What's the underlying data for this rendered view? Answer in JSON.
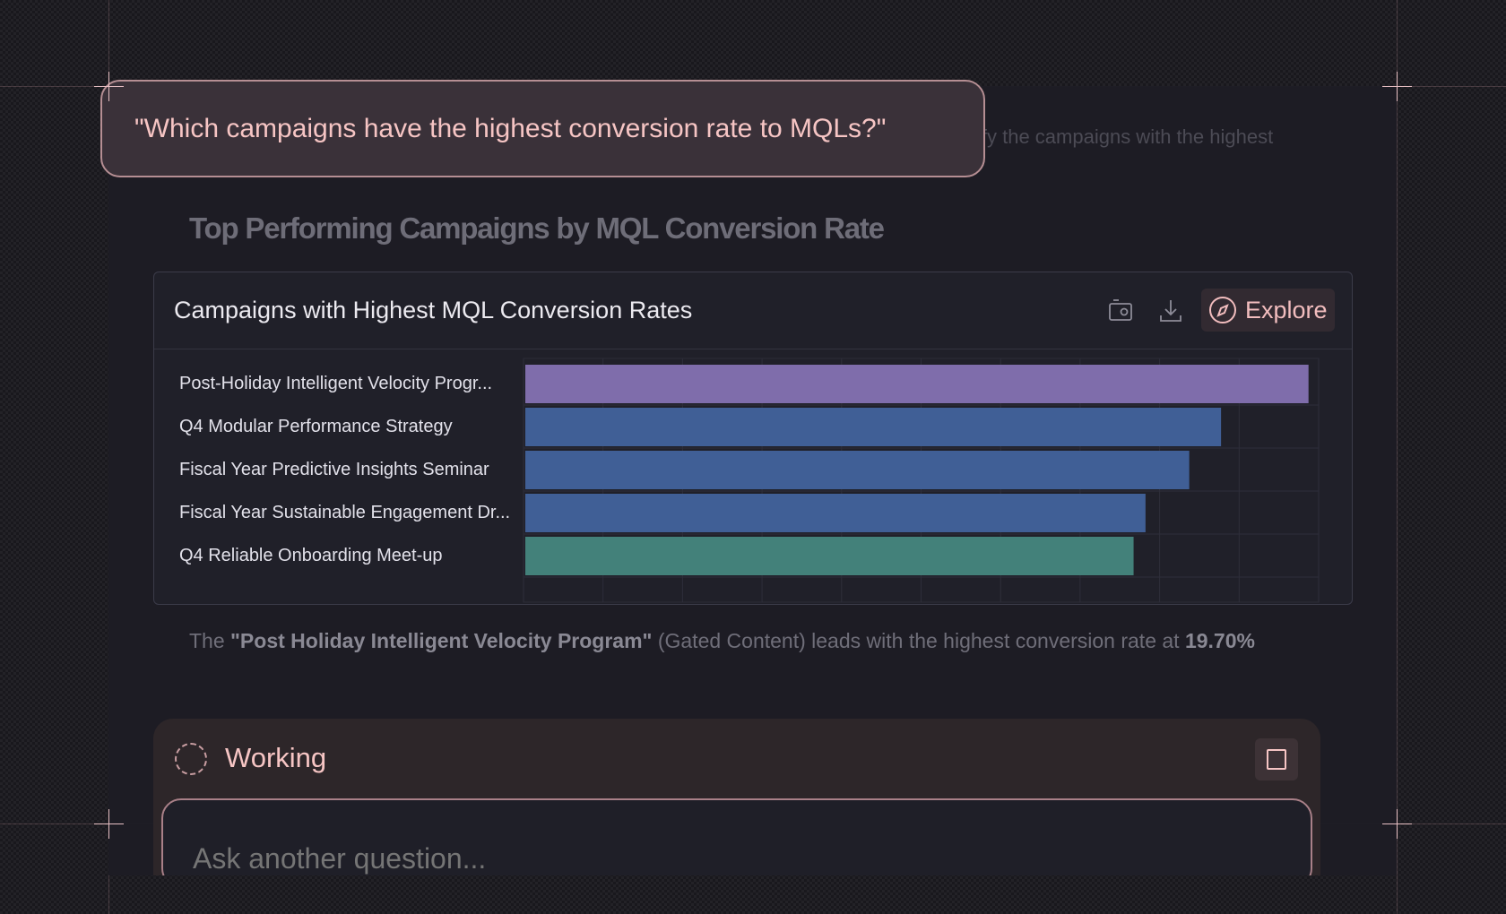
{
  "question": "\"Which campaigns have the highest conversion rate to MQLs?\"",
  "faded_text": "ify the campaigns with the highest",
  "heading": "Top Performing Campaigns by MQL Conversion Rate",
  "card": {
    "title": "Campaigns with Highest MQL Conversion Rates",
    "screenshot_icon": "camera-icon",
    "download_icon": "download-icon",
    "explore_label": "Explore",
    "explore_icon": "compass-icon"
  },
  "chart_data": {
    "type": "bar",
    "orientation": "horizontal",
    "categories": [
      "Post-Holiday Intelligent Velocity Progr...",
      "Q4 Modular Performance Strategy",
      "Fiscal Year Predictive Insights Seminar",
      "Fiscal Year Sustainable Engagement Dr...",
      "Q4 Reliable Onboarding Meet-up"
    ],
    "values": [
      19.7,
      17.5,
      16.7,
      15.6,
      15.3
    ],
    "colors": [
      "#7f6dab",
      "#405f96",
      "#405f96",
      "#405f96",
      "#43817a"
    ],
    "xlim": [
      0,
      20
    ],
    "grid": true
  },
  "summary": {
    "prefix": "The ",
    "campaign": "\"Post Holiday Intelligent Velocity Program\"",
    "middle": " (Gated Content) leads with the highest conversion rate at ",
    "rate": "19.70%"
  },
  "status": {
    "label": "Working",
    "stop_icon": "stop-icon"
  },
  "input": {
    "placeholder": "Ask another question..."
  }
}
